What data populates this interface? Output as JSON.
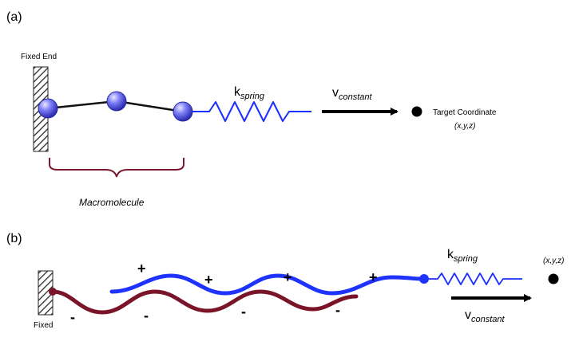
{
  "panel_a": {
    "label": "(a)",
    "fixed_end": "Fixed End",
    "k_main": "k",
    "k_sub": "spring",
    "v_main": "v",
    "v_sub": "constant",
    "target": "Target Coordinate",
    "xyz": "(x,y,z)",
    "macromolecule": "Macromolecule"
  },
  "panel_b": {
    "label": "(b)",
    "fixed": "Fixed",
    "k_main": "k",
    "k_sub": "spring",
    "v_main": "v",
    "v_sub": "constant",
    "xyz": "(x,y,z)",
    "plus": [
      "+",
      "+",
      "+",
      "+"
    ],
    "minus": [
      "-",
      "-",
      "-",
      "-"
    ]
  },
  "colors": {
    "bead": "#5b5cf0",
    "spring": "#1b2fff",
    "brace": "#7a1830",
    "chain_blue": "#1f33ff",
    "chain_red": "#7a1428"
  }
}
